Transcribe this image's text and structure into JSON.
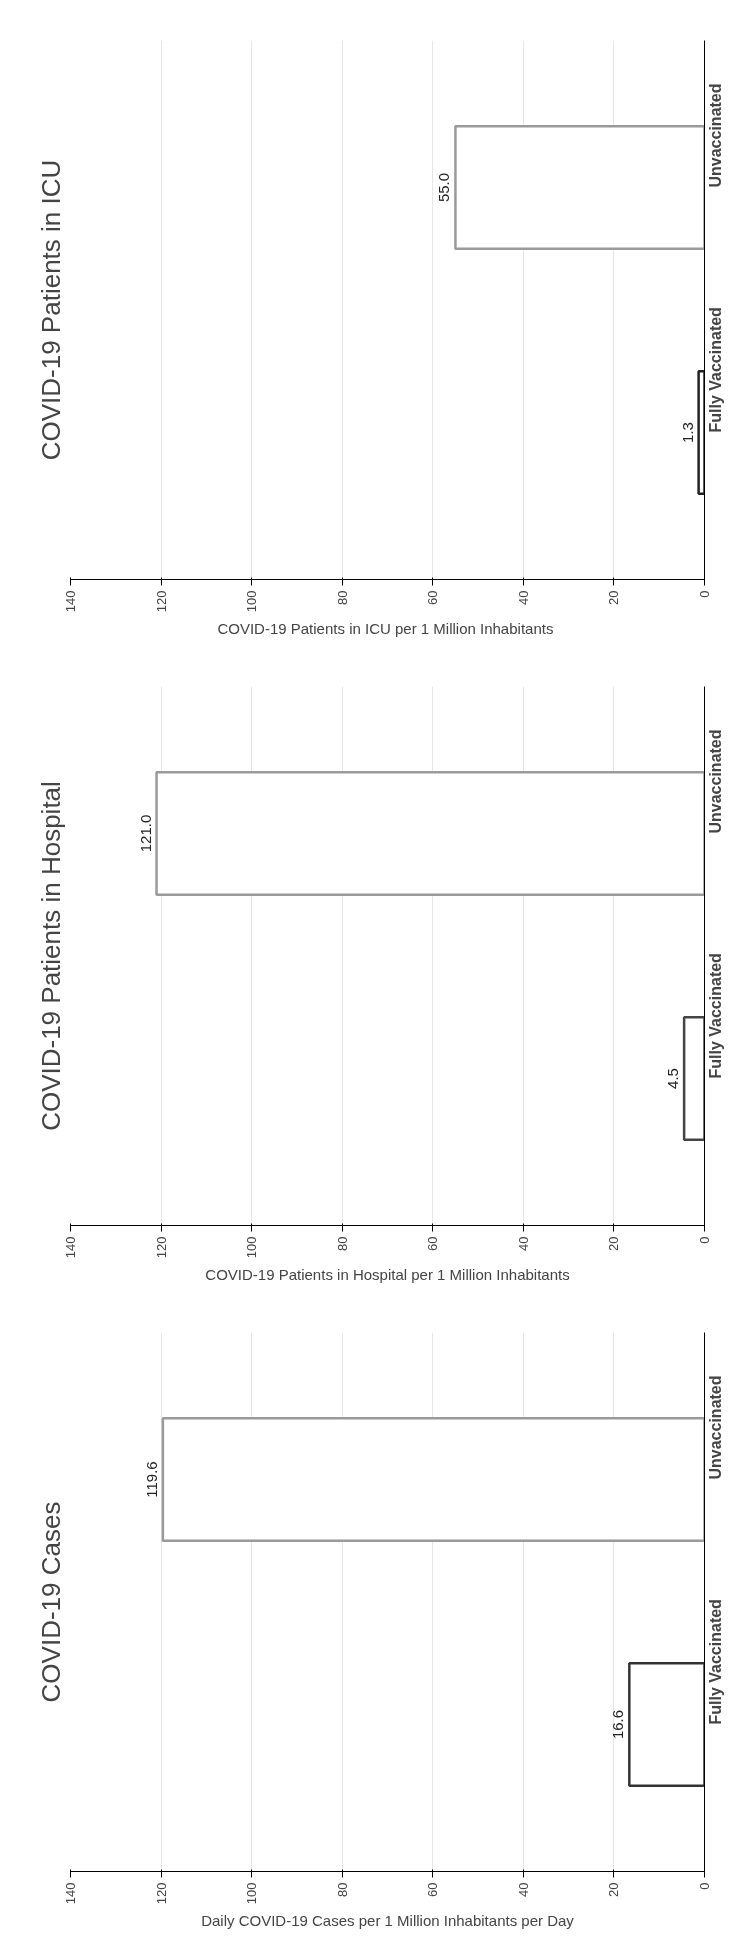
{
  "chart_data": [
    {
      "type": "bar",
      "orientation": "horizontal",
      "title": "COVID-19 Patients in ICU",
      "xlabel": "COVID-19 Patients in ICU  per 1 Million Inhabitants",
      "categories": [
        "Unvaccinated",
        "Fully Vaccinated"
      ],
      "values": [
        55.0,
        1.3
      ],
      "value_labels": [
        "55.0",
        "1.3"
      ],
      "colors": [
        "#9a9a9a",
        "#222222"
      ],
      "xlim": [
        140,
        0
      ],
      "xticks": [
        0,
        20,
        40,
        60,
        80,
        100,
        120,
        140
      ],
      "grid": "x"
    },
    {
      "type": "bar",
      "orientation": "horizontal",
      "title": "COVID-19 Patients in Hospital",
      "xlabel": "COVID-19 Patients in Hospital per 1 Million Inhabitants",
      "categories": [
        "Unvaccinated",
        "Fully Vaccinated"
      ],
      "values": [
        121.0,
        4.5
      ],
      "value_labels": [
        "121.0",
        "4.5"
      ],
      "colors": [
        "#9a9a9a",
        "#444444"
      ],
      "xlim": [
        140,
        0
      ],
      "xticks": [
        0,
        20,
        40,
        60,
        80,
        100,
        120,
        140
      ],
      "grid": "x"
    },
    {
      "type": "bar",
      "orientation": "horizontal",
      "title": "COVID-19 Cases",
      "xlabel": "Daily COVID-19 Cases per 1 Million Inhabitants per Day",
      "categories": [
        "Unvaccinated",
        "Fully Vaccinated"
      ],
      "values": [
        119.6,
        16.6
      ],
      "value_labels": [
        "119.6",
        "16.6"
      ],
      "colors": [
        "#9a9a9a",
        "#333333"
      ],
      "xlim": [
        140,
        0
      ],
      "xticks": [
        0,
        20,
        40,
        60,
        80,
        100,
        120,
        140
      ],
      "grid": "x"
    }
  ]
}
